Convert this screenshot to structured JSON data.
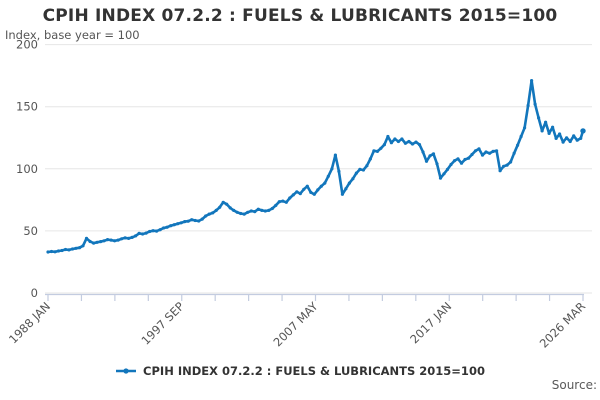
{
  "chart_data": {
    "type": "line",
    "title": "CPIH INDEX 07.2.2 : FUELS & LUBRICANTS 2015=100",
    "subtitle": "Index, base year = 100",
    "legend_label": "CPIH INDEX 07.2.2 : FUELS & LUBRICANTS 2015=100",
    "source_label": "Source:",
    "grid": true,
    "legend_position": "bottom",
    "ylim": [
      0,
      200
    ],
    "y_ticks": [
      0,
      50,
      100,
      150,
      200
    ],
    "x_axis": {
      "start": "1988 JAN",
      "end": "2026 MAR",
      "total_months": 458,
      "minor_tick_count": 17,
      "labels": [
        {
          "text": "1988 JAN",
          "tick_index": 0
        },
        {
          "text": "1997 SEP",
          "tick_index": 4
        },
        {
          "text": "2007 MAY",
          "tick_index": 8
        },
        {
          "text": "2017 JAN",
          "tick_index": 12
        },
        {
          "text": "2026 MAR",
          "tick_index": 16
        }
      ]
    },
    "colors": {
      "line": "#1276bc",
      "grid": "#e6e6e6",
      "axis": "#c3cce0",
      "tick_text": "#555555",
      "title_text": "#333333"
    },
    "series": [
      {
        "name": "CPIH INDEX 07.2.2 : FUELS & LUBRICANTS 2015=100",
        "color": "#1276bc",
        "points_note": "pairs of [months since 1988 JAN, index value]",
        "points": [
          [
            0,
            33
          ],
          [
            3,
            33.4
          ],
          [
            6,
            33.2
          ],
          [
            9,
            33.8
          ],
          [
            12,
            34.2
          ],
          [
            15,
            35
          ],
          [
            18,
            34.7
          ],
          [
            21,
            35.4
          ],
          [
            24,
            36
          ],
          [
            27,
            36.5
          ],
          [
            30,
            38
          ],
          [
            33,
            44
          ],
          [
            36,
            41.5
          ],
          [
            39,
            40.2
          ],
          [
            42,
            40.8
          ],
          [
            45,
            41.4
          ],
          [
            48,
            42
          ],
          [
            51,
            43
          ],
          [
            54,
            42.6
          ],
          [
            57,
            42
          ],
          [
            60,
            42.6
          ],
          [
            63,
            43.6
          ],
          [
            66,
            44.4
          ],
          [
            69,
            44
          ],
          [
            72,
            44.8
          ],
          [
            75,
            46
          ],
          [
            78,
            48
          ],
          [
            81,
            47.5
          ],
          [
            84,
            48.2
          ],
          [
            87,
            49.5
          ],
          [
            90,
            50.2
          ],
          [
            93,
            49.8
          ],
          [
            96,
            51
          ],
          [
            99,
            52.3
          ],
          [
            102,
            53
          ],
          [
            105,
            54.2
          ],
          [
            108,
            55
          ],
          [
            111,
            55.8
          ],
          [
            114,
            56.5
          ],
          [
            117,
            57.5
          ],
          [
            120,
            57.8
          ],
          [
            123,
            59
          ],
          [
            126,
            58.4
          ],
          [
            129,
            58
          ],
          [
            132,
            59.5
          ],
          [
            135,
            62
          ],
          [
            138,
            63.5
          ],
          [
            141,
            64.5
          ],
          [
            144,
            66.5
          ],
          [
            147,
            69
          ],
          [
            150,
            73
          ],
          [
            153,
            71.5
          ],
          [
            156,
            68.5
          ],
          [
            159,
            66.5
          ],
          [
            162,
            65
          ],
          [
            165,
            64
          ],
          [
            168,
            63.5
          ],
          [
            171,
            65
          ],
          [
            174,
            66
          ],
          [
            177,
            65.5
          ],
          [
            180,
            67.5
          ],
          [
            183,
            66.5
          ],
          [
            186,
            66
          ],
          [
            189,
            66.5
          ],
          [
            192,
            68
          ],
          [
            195,
            70.5
          ],
          [
            198,
            73.5
          ],
          [
            201,
            74
          ],
          [
            204,
            73
          ],
          [
            207,
            76.5
          ],
          [
            210,
            79
          ],
          [
            213,
            81.5
          ],
          [
            216,
            80
          ],
          [
            219,
            83.5
          ],
          [
            222,
            86
          ],
          [
            225,
            81
          ],
          [
            228,
            79.5
          ],
          [
            231,
            83
          ],
          [
            234,
            86
          ],
          [
            237,
            88.5
          ],
          [
            240,
            94
          ],
          [
            243,
            100
          ],
          [
            246,
            111
          ],
          [
            249,
            98
          ],
          [
            252,
            79.5
          ],
          [
            255,
            84
          ],
          [
            258,
            88.5
          ],
          [
            261,
            92
          ],
          [
            264,
            96.5
          ],
          [
            267,
            99.5
          ],
          [
            270,
            99
          ],
          [
            273,
            102.5
          ],
          [
            276,
            108
          ],
          [
            279,
            114.5
          ],
          [
            282,
            114
          ],
          [
            285,
            116.5
          ],
          [
            288,
            119.5
          ],
          [
            291,
            126
          ],
          [
            294,
            121
          ],
          [
            297,
            124
          ],
          [
            300,
            122
          ],
          [
            303,
            124
          ],
          [
            306,
            120.5
          ],
          [
            309,
            122
          ],
          [
            312,
            120
          ],
          [
            315,
            121.5
          ],
          [
            318,
            119.5
          ],
          [
            321,
            113.5
          ],
          [
            324,
            106
          ],
          [
            327,
            110.5
          ],
          [
            330,
            112
          ],
          [
            333,
            104
          ],
          [
            336,
            92.5
          ],
          [
            339,
            96
          ],
          [
            342,
            99.5
          ],
          [
            345,
            103.5
          ],
          [
            348,
            106.5
          ],
          [
            351,
            108
          ],
          [
            354,
            104.5
          ],
          [
            357,
            107.5
          ],
          [
            360,
            108.5
          ],
          [
            363,
            111.5
          ],
          [
            366,
            114.5
          ],
          [
            369,
            116
          ],
          [
            372,
            111
          ],
          [
            375,
            113.5
          ],
          [
            378,
            112.5
          ],
          [
            381,
            114
          ],
          [
            384,
            114.5
          ],
          [
            387,
            98.5
          ],
          [
            390,
            102
          ],
          [
            393,
            103
          ],
          [
            396,
            105.5
          ],
          [
            399,
            112.5
          ],
          [
            402,
            119
          ],
          [
            405,
            126
          ],
          [
            408,
            133
          ],
          [
            411,
            151
          ],
          [
            414,
            171
          ],
          [
            417,
            152
          ],
          [
            420,
            141
          ],
          [
            423,
            130.5
          ],
          [
            426,
            137.5
          ],
          [
            429,
            128.5
          ],
          [
            432,
            133.5
          ],
          [
            435,
            124.5
          ],
          [
            438,
            128
          ],
          [
            441,
            121.5
          ],
          [
            444,
            125
          ],
          [
            447,
            122
          ],
          [
            450,
            126.5
          ],
          [
            453,
            123
          ],
          [
            456,
            124.5
          ],
          [
            458,
            130.5
          ]
        ]
      }
    ]
  }
}
